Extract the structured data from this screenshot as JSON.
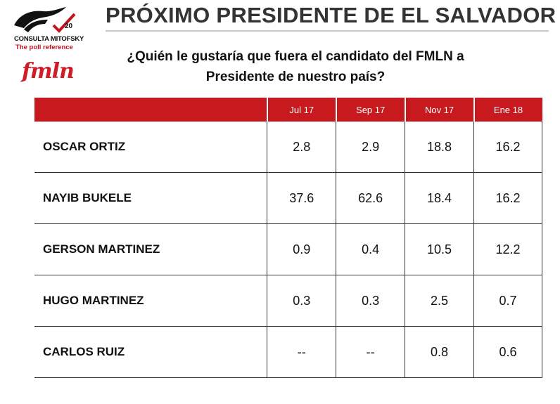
{
  "brand": {
    "name": "CONSULTA MITOFSKY",
    "tagline": "The poll reference",
    "anniversary": "20",
    "party_logo_text": "fmln"
  },
  "title": "PRÓXIMO PRESIDENTE DE EL SALVADOR",
  "question": {
    "line1": "¿Quién le gustaría que fuera el candidato del FMLN a",
    "line2": "Presidente de nuestro país?"
  },
  "table": {
    "columns": [
      "Jul 17",
      "Sep 17",
      "Nov 17",
      "Ene 18"
    ],
    "rows": [
      {
        "name": "OSCAR ORTIZ",
        "values": [
          "2.8",
          "2.9",
          "18.8",
          "16.2"
        ]
      },
      {
        "name": "NAYIB BUKELE",
        "values": [
          "37.6",
          "62.6",
          "18.4",
          "16.2"
        ]
      },
      {
        "name": "GERSON MARTINEZ",
        "values": [
          "0.9",
          "0.4",
          "10.5",
          "12.2"
        ]
      },
      {
        "name": "HUGO MARTINEZ",
        "values": [
          "0.3",
          "0.3",
          "2.5",
          "0.7"
        ]
      },
      {
        "name": "CARLOS RUIZ",
        "values": [
          "--",
          "--",
          "0.8",
          "0.6"
        ]
      }
    ]
  },
  "colors": {
    "header_red": "#c8191f",
    "title_gray": "#333333",
    "brand_red": "#c0151f"
  }
}
